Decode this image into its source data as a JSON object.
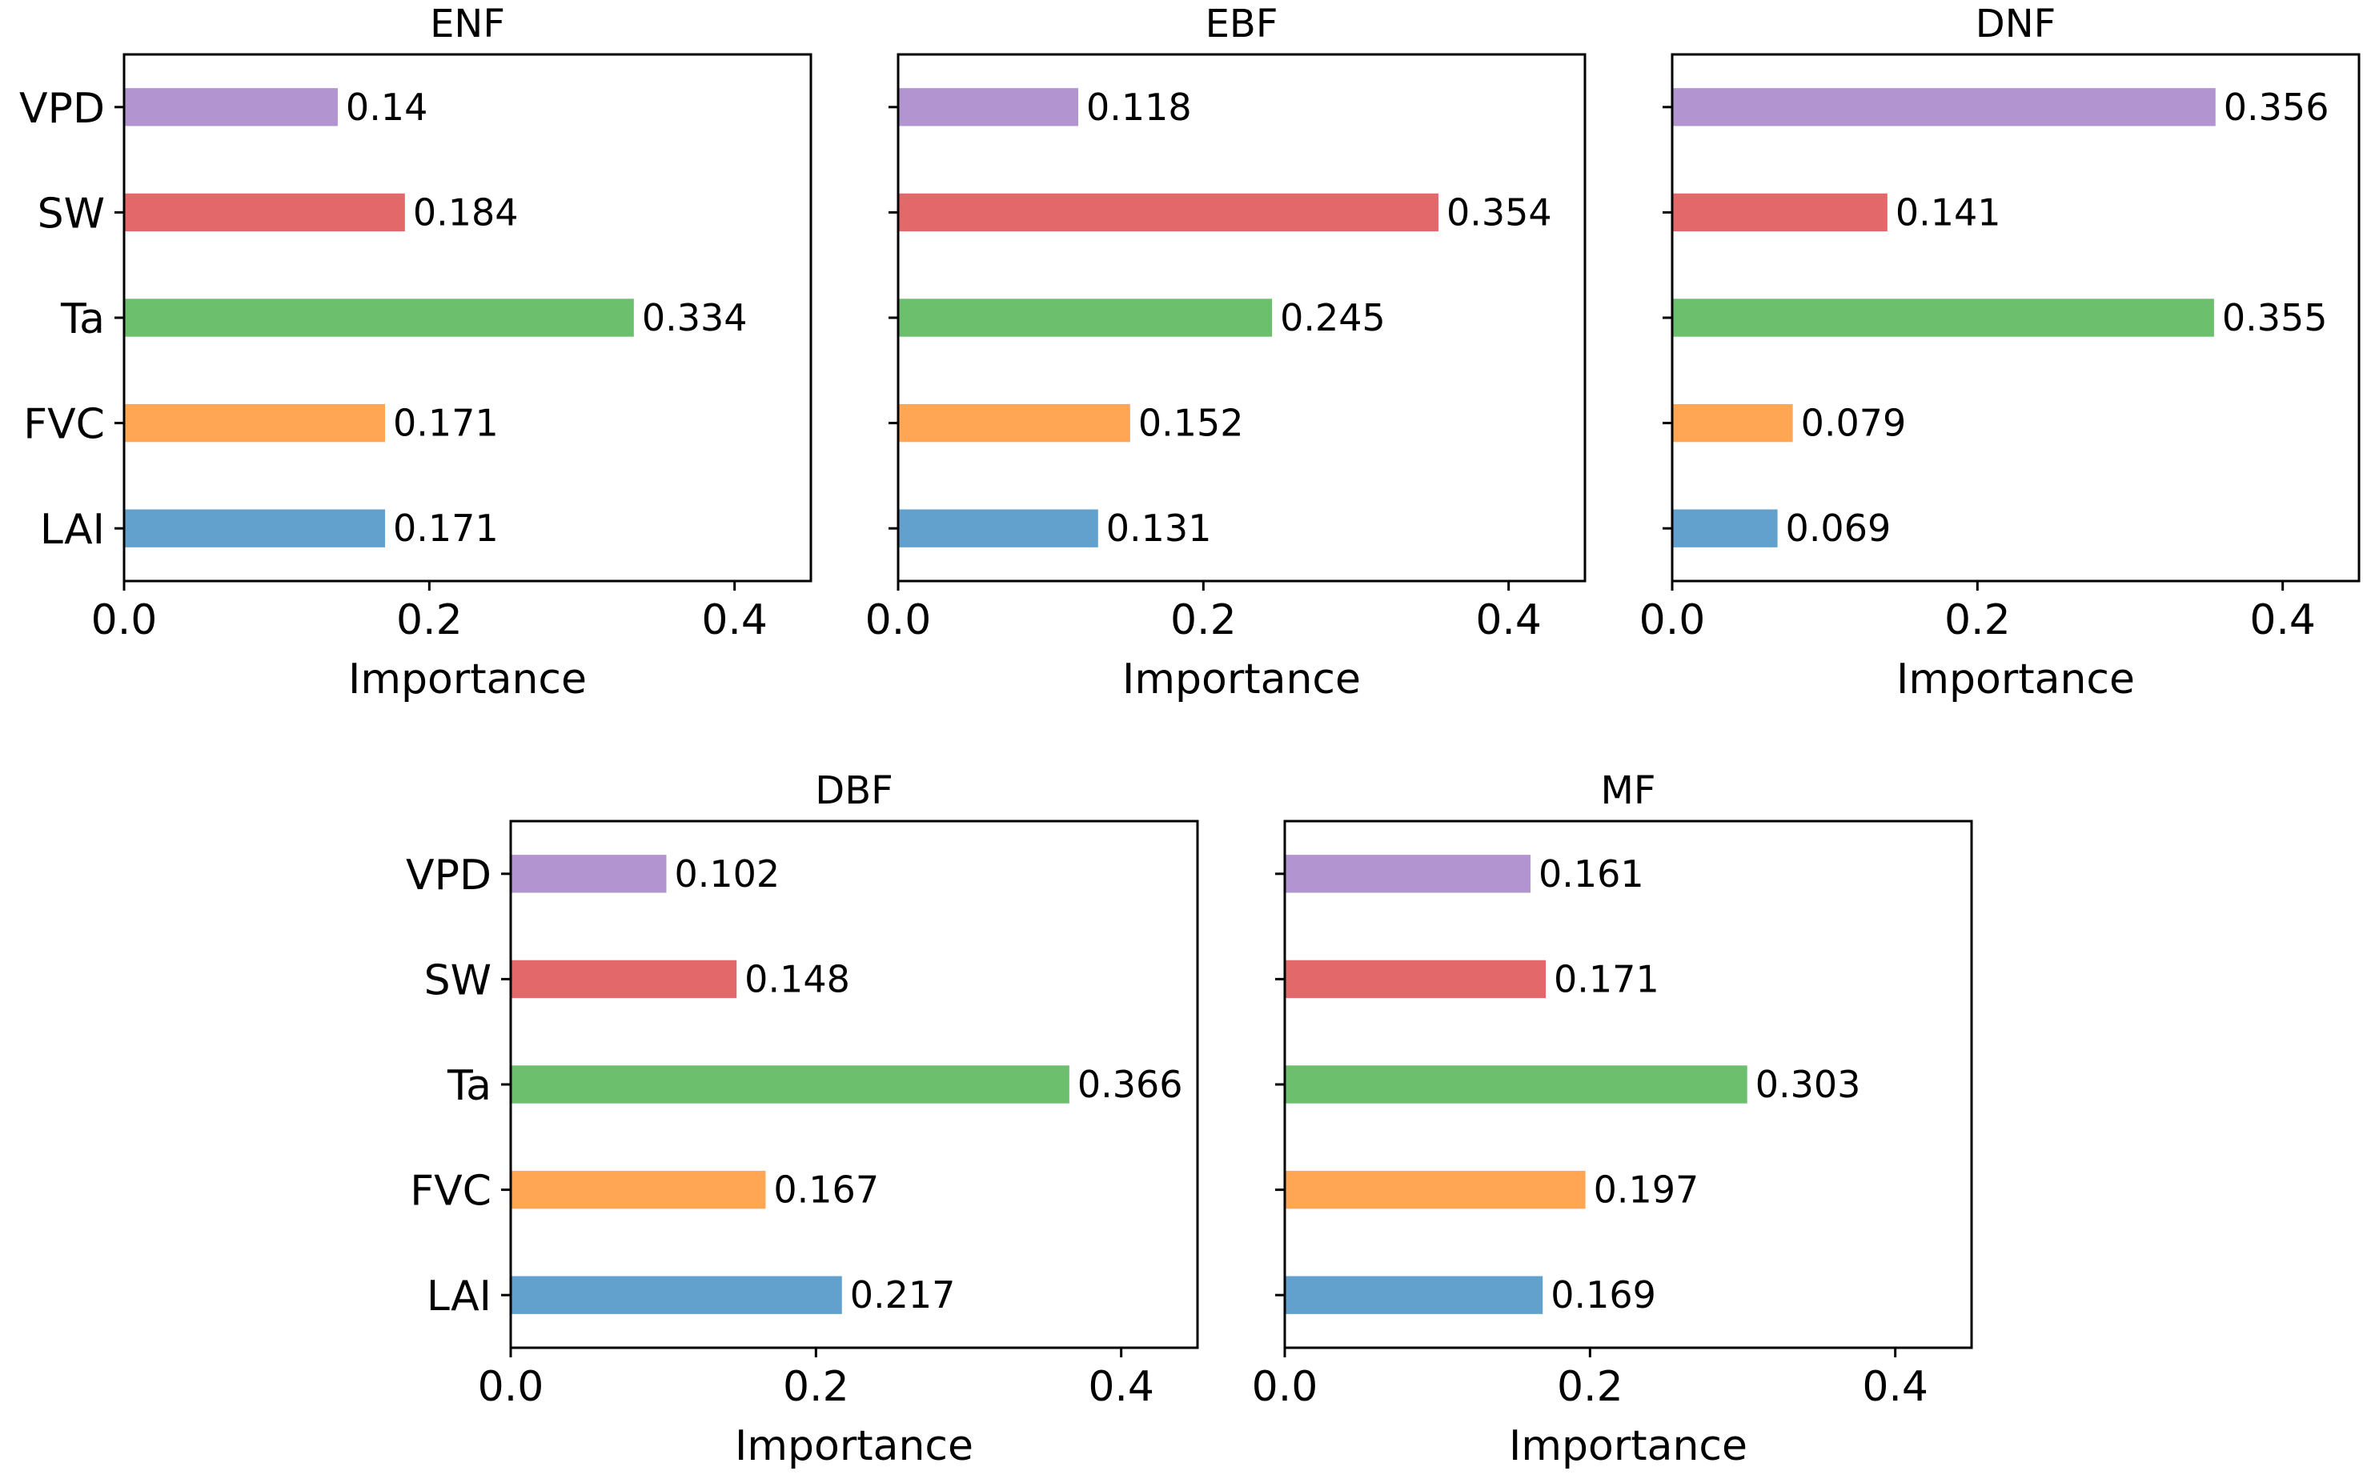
{
  "chart_data": [
    {
      "type": "bar",
      "orientation": "horizontal",
      "title": "ENF",
      "categories": [
        "VPD",
        "SW",
        "Ta",
        "FVC",
        "LAI"
      ],
      "values": [
        0.14,
        0.184,
        0.334,
        0.171,
        0.171
      ],
      "value_labels": [
        "0.14",
        "0.184",
        "0.334",
        "0.171",
        "0.171"
      ],
      "colors": [
        "#b294d1",
        "#e2686a",
        "#6cbf6c",
        "#fea654",
        "#62a1cd"
      ],
      "xlabel": "Importance",
      "xlim": [
        0,
        0.45
      ],
      "xticks": [
        0.0,
        0.2,
        0.4
      ],
      "xtick_labels": [
        "0.0",
        "0.2",
        "0.4"
      ],
      "show_category_labels": true
    },
    {
      "type": "bar",
      "orientation": "horizontal",
      "title": "EBF",
      "categories": [
        "VPD",
        "SW",
        "Ta",
        "FVC",
        "LAI"
      ],
      "values": [
        0.118,
        0.354,
        0.245,
        0.152,
        0.131
      ],
      "value_labels": [
        "0.118",
        "0.354",
        "0.245",
        "0.152",
        "0.131"
      ],
      "colors": [
        "#b294d1",
        "#e2686a",
        "#6cbf6c",
        "#fea654",
        "#62a1cd"
      ],
      "xlabel": "Importance",
      "xlim": [
        0,
        0.45
      ],
      "xticks": [
        0.0,
        0.2,
        0.4
      ],
      "xtick_labels": [
        "0.0",
        "0.2",
        "0.4"
      ],
      "show_category_labels": false
    },
    {
      "type": "bar",
      "orientation": "horizontal",
      "title": "DNF",
      "categories": [
        "VPD",
        "SW",
        "Ta",
        "FVC",
        "LAI"
      ],
      "values": [
        0.356,
        0.141,
        0.355,
        0.079,
        0.069
      ],
      "value_labels": [
        "0.356",
        "0.141",
        "0.355",
        "0.079",
        "0.069"
      ],
      "colors": [
        "#b294d1",
        "#e2686a",
        "#6cbf6c",
        "#fea654",
        "#62a1cd"
      ],
      "xlabel": "Importance",
      "xlim": [
        0,
        0.45
      ],
      "xticks": [
        0.0,
        0.2,
        0.4
      ],
      "xtick_labels": [
        "0.0",
        "0.2",
        "0.4"
      ],
      "show_category_labels": false
    },
    {
      "type": "bar",
      "orientation": "horizontal",
      "title": "DBF",
      "categories": [
        "VPD",
        "SW",
        "Ta",
        "FVC",
        "LAI"
      ],
      "values": [
        0.102,
        0.148,
        0.366,
        0.167,
        0.217
      ],
      "value_labels": [
        "0.102",
        "0.148",
        "0.366",
        "0.167",
        "0.217"
      ],
      "colors": [
        "#b294d1",
        "#e2686a",
        "#6cbf6c",
        "#fea654",
        "#62a1cd"
      ],
      "xlabel": "Importance",
      "xlim": [
        0,
        0.45
      ],
      "xticks": [
        0.0,
        0.2,
        0.4
      ],
      "xtick_labels": [
        "0.0",
        "0.2",
        "0.4"
      ],
      "show_category_labels": true
    },
    {
      "type": "bar",
      "orientation": "horizontal",
      "title": "MF",
      "categories": [
        "VPD",
        "SW",
        "Ta",
        "FVC",
        "LAI"
      ],
      "values": [
        0.161,
        0.171,
        0.303,
        0.197,
        0.169
      ],
      "value_labels": [
        "0.161",
        "0.171",
        "0.303",
        "0.197",
        "0.169"
      ],
      "colors": [
        "#b294d1",
        "#e2686a",
        "#6cbf6c",
        "#fea654",
        "#62a1cd"
      ],
      "xlabel": "Importance",
      "xlim": [
        0,
        0.45
      ],
      "xticks": [
        0.0,
        0.2,
        0.4
      ],
      "xtick_labels": [
        "0.0",
        "0.2",
        "0.4"
      ],
      "show_category_labels": false
    }
  ]
}
